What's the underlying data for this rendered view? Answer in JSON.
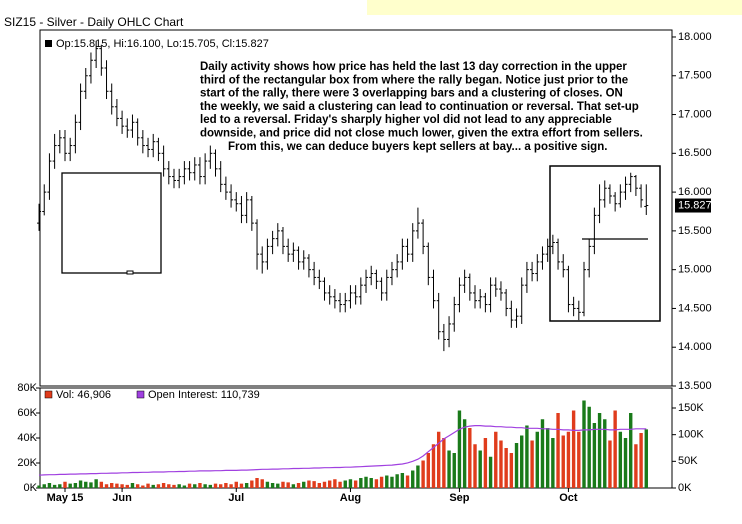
{
  "chart_data": {
    "type": "ohlc",
    "title": "SIZ15 - Silver - Daily OHLC Chart",
    "price_legend": "Op:15.815, Hi:16.100, Lo:15.705, Cl:15.827",
    "volume_legend": "Vol: 46,906",
    "oi_legend": "Open Interest: 110,739",
    "last_label": "15.827",
    "annotation": [
      "Daily activity shows how price has held the last 13 day correction in the upper",
      "third of the rectangular box from where the rally began.  Notice just prior to the",
      "start of the rally, there were 3 overlapping bars and a clustering of closes.  ON",
      "the weekly, we said a clustering can lead to continuation or reversal.  That set-up",
      "led to a reversal.  Friday's sharply higher vol did not lead to any appreciable",
      "downside, and price did not close much lower, given the extra effort from sellers.",
      "From this, we can deduce buyers kept sellers at bay... a positive sign."
    ],
    "xticks": [
      {
        "value": 5,
        "label": "May 15"
      },
      {
        "value": 16,
        "label": "Jun"
      },
      {
        "value": 38,
        "label": "Jul"
      },
      {
        "value": 60,
        "label": "Aug"
      },
      {
        "value": 81,
        "label": "Sep"
      },
      {
        "value": 102,
        "label": "Oct"
      }
    ],
    "ylim": [
      13.5,
      18.09
    ],
    "yticks": [
      {
        "value": 13.5,
        "label": "13.500"
      },
      {
        "value": 14,
        "label": "14.000"
      },
      {
        "value": 14.5,
        "label": "14.500"
      },
      {
        "value": 15,
        "label": "15.000"
      },
      {
        "value": 15.5,
        "label": "15.500"
      },
      {
        "value": 16,
        "label": "16.000"
      },
      {
        "value": 16.5,
        "label": "16.500"
      },
      {
        "value": 17,
        "label": "17.000"
      },
      {
        "value": 17.5,
        "label": "17.500"
      },
      {
        "value": 18,
        "label": "18.000"
      }
    ],
    "vlim": [
      0,
      80000
    ],
    "vticks": [
      {
        "value": 0,
        "label": "0K"
      },
      {
        "value": 20000,
        "label": "20K"
      },
      {
        "value": 40000,
        "label": "40K"
      },
      {
        "value": 60000,
        "label": "60K"
      },
      {
        "value": 80000,
        "label": "80K"
      }
    ],
    "y2lim": [
      0,
      187500
    ],
    "y2ticks": [
      {
        "value": 0,
        "label": "0K"
      },
      {
        "value": 50000,
        "label": "50K"
      },
      {
        "value": 100000,
        "label": "100K"
      },
      {
        "value": 150000,
        "label": "150K"
      }
    ],
    "bar_color": "#000000",
    "up_color": "#1a7a1a",
    "down_color": "#e03c1c",
    "oi_color": "#a040e0",
    "ohlc": [
      [
        15.6,
        15.85,
        15.5,
        15.75
      ],
      [
        15.75,
        16.1,
        15.7,
        16.0
      ],
      [
        16.0,
        16.5,
        15.9,
        16.4
      ],
      [
        16.4,
        16.75,
        16.3,
        16.6
      ],
      [
        16.6,
        16.8,
        16.5,
        16.7
      ],
      [
        16.7,
        16.8,
        16.4,
        16.5
      ],
      [
        16.5,
        16.7,
        16.4,
        16.6
      ],
      [
        16.6,
        17.0,
        16.5,
        16.9
      ],
      [
        16.9,
        17.4,
        16.8,
        17.3
      ],
      [
        17.3,
        17.6,
        17.2,
        17.5
      ],
      [
        17.5,
        17.8,
        17.4,
        17.7
      ],
      [
        17.7,
        17.95,
        17.6,
        17.85
      ],
      [
        17.85,
        17.9,
        17.5,
        17.6
      ],
      [
        17.6,
        17.7,
        17.2,
        17.3
      ],
      [
        17.3,
        17.4,
        17.0,
        17.1
      ],
      [
        17.1,
        17.2,
        16.85,
        16.95
      ],
      [
        16.95,
        17.05,
        16.75,
        16.85
      ],
      [
        16.85,
        16.95,
        16.7,
        16.8
      ],
      [
        16.8,
        17.0,
        16.7,
        16.9
      ],
      [
        16.9,
        16.95,
        16.6,
        16.7
      ],
      [
        16.7,
        16.8,
        16.5,
        16.6
      ],
      [
        16.6,
        16.7,
        16.45,
        16.55
      ],
      [
        16.55,
        16.75,
        16.45,
        16.65
      ],
      [
        16.65,
        16.7,
        16.4,
        16.5
      ],
      [
        16.5,
        16.6,
        16.2,
        16.3
      ],
      [
        16.3,
        16.4,
        16.1,
        16.2
      ],
      [
        16.2,
        16.3,
        16.05,
        16.15
      ],
      [
        16.15,
        16.3,
        16.05,
        16.2
      ],
      [
        16.2,
        16.4,
        16.1,
        16.3
      ],
      [
        16.3,
        16.4,
        16.15,
        16.25
      ],
      [
        16.25,
        16.45,
        16.15,
        16.35
      ],
      [
        16.35,
        16.45,
        16.1,
        16.2
      ],
      [
        16.2,
        16.5,
        16.1,
        16.4
      ],
      [
        16.4,
        16.6,
        16.3,
        16.5
      ],
      [
        16.5,
        16.55,
        16.2,
        16.3
      ],
      [
        16.3,
        16.4,
        16.0,
        16.1
      ],
      [
        16.1,
        16.2,
        15.9,
        16.0
      ],
      [
        16.0,
        16.1,
        15.8,
        15.9
      ],
      [
        15.9,
        16.0,
        15.75,
        15.85
      ],
      [
        15.85,
        15.95,
        15.6,
        15.7
      ],
      [
        15.7,
        16.0,
        15.6,
        15.9
      ],
      [
        15.9,
        15.95,
        15.5,
        15.6
      ],
      [
        15.6,
        15.65,
        15.0,
        15.2
      ],
      [
        15.2,
        15.3,
        14.95,
        15.1
      ],
      [
        15.1,
        15.4,
        15.0,
        15.3
      ],
      [
        15.3,
        15.5,
        15.2,
        15.4
      ],
      [
        15.4,
        15.6,
        15.3,
        15.5
      ],
      [
        15.5,
        15.55,
        15.2,
        15.3
      ],
      [
        15.3,
        15.4,
        15.1,
        15.2
      ],
      [
        15.2,
        15.35,
        15.1,
        15.25
      ],
      [
        15.25,
        15.3,
        15.0,
        15.1
      ],
      [
        15.1,
        15.25,
        15.0,
        15.15
      ],
      [
        15.15,
        15.2,
        14.9,
        15.0
      ],
      [
        15.0,
        15.1,
        14.8,
        14.9
      ],
      [
        14.9,
        15.0,
        14.75,
        14.85
      ],
      [
        14.85,
        14.9,
        14.6,
        14.7
      ],
      [
        14.7,
        14.8,
        14.55,
        14.65
      ],
      [
        14.65,
        14.75,
        14.5,
        14.6
      ],
      [
        14.6,
        14.7,
        14.45,
        14.55
      ],
      [
        14.55,
        14.7,
        14.45,
        14.6
      ],
      [
        14.6,
        14.8,
        14.5,
        14.7
      ],
      [
        14.7,
        14.8,
        14.55,
        14.65
      ],
      [
        14.65,
        14.9,
        14.55,
        14.8
      ],
      [
        14.8,
        15.0,
        14.7,
        14.9
      ],
      [
        14.9,
        15.05,
        14.8,
        14.95
      ],
      [
        14.95,
        15.0,
        14.75,
        14.85
      ],
      [
        14.85,
        14.9,
        14.6,
        14.7
      ],
      [
        14.7,
        15.0,
        14.6,
        14.9
      ],
      [
        14.9,
        15.1,
        14.8,
        15.0
      ],
      [
        15.0,
        15.2,
        14.9,
        15.1
      ],
      [
        15.1,
        15.4,
        15.0,
        15.3
      ],
      [
        15.3,
        15.4,
        15.1,
        15.2
      ],
      [
        15.2,
        15.6,
        15.1,
        15.5
      ],
      [
        15.5,
        15.8,
        15.4,
        15.6
      ],
      [
        15.6,
        15.65,
        15.2,
        15.3
      ],
      [
        15.3,
        15.35,
        14.8,
        14.9
      ],
      [
        14.9,
        15.0,
        14.5,
        14.6
      ],
      [
        14.6,
        14.7,
        14.1,
        14.2
      ],
      [
        14.2,
        14.3,
        13.95,
        14.1
      ],
      [
        14.1,
        14.4,
        14.0,
        14.3
      ],
      [
        14.3,
        14.65,
        14.2,
        14.55
      ],
      [
        14.55,
        14.9,
        14.45,
        14.8
      ],
      [
        14.8,
        15.0,
        14.7,
        14.9
      ],
      [
        14.9,
        14.95,
        14.6,
        14.7
      ],
      [
        14.7,
        14.8,
        14.5,
        14.6
      ],
      [
        14.6,
        14.75,
        14.5,
        14.65
      ],
      [
        14.65,
        14.7,
        14.45,
        14.55
      ],
      [
        14.55,
        14.9,
        14.45,
        14.8
      ],
      [
        14.8,
        14.9,
        14.65,
        14.75
      ],
      [
        14.75,
        14.85,
        14.6,
        14.7
      ],
      [
        14.7,
        14.75,
        14.4,
        14.5
      ],
      [
        14.5,
        14.6,
        14.25,
        14.35
      ],
      [
        14.35,
        14.5,
        14.25,
        14.4
      ],
      [
        14.4,
        14.9,
        14.3,
        14.8
      ],
      [
        14.8,
        15.1,
        14.7,
        15.0
      ],
      [
        15.0,
        15.1,
        14.85,
        14.95
      ],
      [
        14.95,
        15.2,
        14.85,
        15.1
      ],
      [
        15.1,
        15.3,
        15.0,
        15.2
      ],
      [
        15.2,
        15.4,
        15.1,
        15.3
      ],
      [
        15.3,
        15.45,
        15.2,
        15.35
      ],
      [
        15.35,
        15.4,
        15.0,
        15.1
      ],
      [
        15.1,
        15.2,
        14.9,
        15.0
      ],
      [
        15.0,
        15.05,
        14.45,
        14.55
      ],
      [
        14.55,
        14.65,
        14.4,
        14.5
      ],
      [
        14.5,
        14.6,
        14.35,
        14.45
      ],
      [
        14.45,
        15.1,
        14.4,
        15.0
      ],
      [
        15.0,
        15.4,
        14.9,
        15.3
      ],
      [
        15.3,
        15.8,
        15.2,
        15.7
      ],
      [
        15.7,
        16.1,
        15.6,
        15.9
      ],
      [
        15.9,
        16.15,
        15.8,
        16.05
      ],
      [
        16.05,
        16.1,
        15.85,
        15.95
      ],
      [
        15.95,
        16.0,
        15.75,
        15.85
      ],
      [
        15.85,
        16.1,
        15.8,
        16.0
      ],
      [
        16.0,
        16.2,
        15.9,
        16.1
      ],
      [
        16.1,
        16.25,
        16.0,
        16.2
      ],
      [
        16.2,
        16.22,
        15.95,
        16.05
      ],
      [
        16.05,
        16.1,
        15.8,
        15.9
      ],
      [
        15.815,
        16.1,
        15.705,
        15.827
      ]
    ],
    "volume": [
      2000,
      3000,
      4000,
      2500,
      3000,
      5000,
      3500,
      4000,
      6000,
      5000,
      4500,
      7000,
      5000,
      3000,
      4000,
      3500,
      3000,
      2500,
      4000,
      3000,
      2000,
      3500,
      2500,
      3000,
      4000,
      3000,
      2500,
      3000,
      2000,
      3500,
      3000,
      4000,
      3000,
      2500,
      3500,
      3000,
      4000,
      3000,
      5000,
      3500,
      4000,
      6000,
      8000,
      7000,
      5000,
      4000,
      3500,
      5000,
      4500,
      3000,
      4000,
      5000,
      6000,
      5500,
      4000,
      5000,
      6000,
      7000,
      5000,
      6000,
      7000,
      6000,
      8000,
      9000,
      8000,
      7000,
      9000,
      10000,
      9000,
      11000,
      12000,
      10000,
      14000,
      18000,
      22000,
      28000,
      35000,
      45000,
      40000,
      30000,
      28000,
      62000,
      55000,
      48000,
      35000,
      30000,
      40000,
      25000,
      45000,
      38000,
      32000,
      28000,
      36000,
      42000,
      50000,
      38000,
      45000,
      55000,
      48000,
      40000,
      60000,
      42000,
      45000,
      62000,
      45000,
      70000,
      65000,
      52000,
      60000,
      55000,
      38000,
      62000,
      45000,
      40000,
      60000,
      35000,
      44000,
      46906
    ],
    "open_interest": [
      24000,
      24500,
      25000,
      25000,
      25500,
      25500,
      26000,
      26000,
      26500,
      26500,
      27000,
      27000,
      27500,
      27500,
      28000,
      28000,
      28500,
      28500,
      29000,
      29000,
      29500,
      29500,
      30000,
      30000,
      30000,
      30500,
      30500,
      31000,
      31000,
      31500,
      31500,
      32000,
      32000,
      32000,
      32500,
      32500,
      33000,
      33000,
      33000,
      33500,
      33500,
      34000,
      34500,
      35000,
      35000,
      35500,
      35500,
      36000,
      36000,
      36500,
      36500,
      37000,
      37000,
      37500,
      37500,
      38000,
      38000,
      38500,
      38500,
      39000,
      39000,
      39500,
      40000,
      40500,
      41000,
      41500,
      42000,
      42500,
      43000,
      44000,
      45000,
      47000,
      50000,
      54000,
      60000,
      68000,
      76000,
      84000,
      92000,
      98000,
      104000,
      110000,
      114000,
      116000,
      117000,
      117000,
      116000,
      116000,
      115000,
      115000,
      114000,
      114000,
      113000,
      113000,
      112000,
      112000,
      112000,
      111000,
      111000,
      110000,
      110000,
      109000,
      109000,
      108000,
      108000,
      109000,
      109000,
      110000,
      110000,
      110000,
      109000,
      109000,
      110000,
      110000,
      110000,
      111000,
      111000,
      110739
    ]
  }
}
